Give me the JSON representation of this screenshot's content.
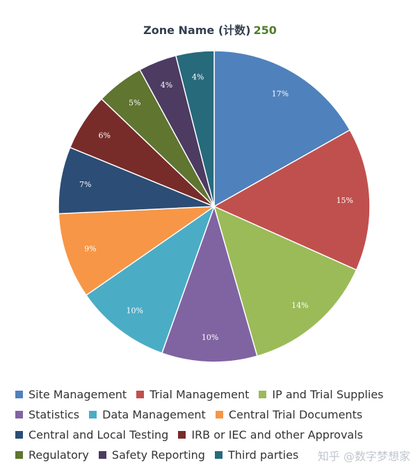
{
  "chart_data": {
    "type": "pie",
    "title": "Zone Name (计数)",
    "total": "250",
    "slices": [
      {
        "name": "Site Management",
        "value": 17,
        "label": "17%",
        "color": "#4F81BD"
      },
      {
        "name": "Trial Management",
        "value": 15,
        "label": "15%",
        "color": "#C0504D"
      },
      {
        "name": "IP and Trial Supplies",
        "value": 14,
        "label": "14%",
        "color": "#9BBB59"
      },
      {
        "name": "Statistics",
        "value": 10,
        "label": "10%",
        "color": "#8064A2"
      },
      {
        "name": "Data Management",
        "value": 10,
        "label": "10%",
        "color": "#4BACC6"
      },
      {
        "name": "Central Trial Documents",
        "value": 9,
        "label": "9%",
        "color": "#F79646"
      },
      {
        "name": "Central and Local Testing",
        "value": 7,
        "label": "7%",
        "color": "#2C4D75"
      },
      {
        "name": "IRB or IEC and other Approvals",
        "value": 6,
        "label": "6%",
        "color": "#772C2A"
      },
      {
        "name": "Regulatory",
        "value": 5,
        "label": "5%",
        "color": "#5F7530"
      },
      {
        "name": "Safety Reporting",
        "value": 4,
        "label": "4%",
        "color": "#4D3B62"
      },
      {
        "name": "Third parties",
        "value": 4,
        "label": "4%",
        "color": "#276A7C"
      }
    ],
    "legend_placement": "bottom",
    "legend_rows": [
      [
        "Site Management",
        "Trial Management",
        "IP and Trial Supplies"
      ],
      [
        "Statistics",
        "Data Management",
        "Central Trial Documents"
      ],
      [
        "Central and Local Testing",
        "IRB or IEC and other Approvals"
      ],
      [
        "Regulatory",
        "Safety Reporting",
        "Third parties"
      ]
    ]
  },
  "watermark": "知乎 @数字梦想家"
}
